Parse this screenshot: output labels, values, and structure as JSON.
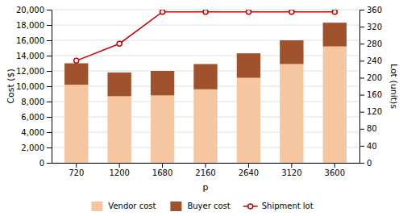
{
  "chart_data": {
    "type": "bar",
    "stacked": true,
    "categories": [
      "720",
      "1200",
      "1680",
      "2160",
      "2640",
      "3120",
      "3600"
    ],
    "x_label": "p",
    "y_label": "Cost ($)",
    "y2_label": "Lot (unit)s",
    "ylim": [
      0,
      20000
    ],
    "yticks": [
      0,
      {
        "value": 2000,
        "label": "2,000"
      },
      {
        "value": 4000,
        "label": "4,000"
      },
      {
        "value": 6000,
        "label": "6,000"
      },
      {
        "value": 8000,
        "label": "8,000"
      },
      {
        "value": 10000,
        "label": "10,000"
      },
      {
        "value": 12000,
        "label": "12,000"
      },
      {
        "value": 14000,
        "label": "14,000"
      },
      {
        "value": 16000,
        "label": "16,000"
      },
      {
        "value": 18000,
        "label": "18,000"
      },
      {
        "value": 20000,
        "label": "20,000"
      }
    ],
    "y2lim": [
      0,
      360
    ],
    "y2ticks": [
      0,
      40,
      80,
      120,
      160,
      200,
      240,
      280,
      320,
      360
    ],
    "grid": true,
    "legend": "bottom",
    "series": [
      {
        "name": "Vendor cost",
        "color": "#f5c6a0",
        "values": [
          10200,
          8700,
          8800,
          9600,
          11100,
          12900,
          15200
        ]
      },
      {
        "name": "Buyer cost",
        "color": "#a0522d",
        "values": [
          2800,
          3100,
          3200,
          3300,
          3200,
          3100,
          3100
        ]
      },
      {
        "name": "Shipment lot",
        "type": "line",
        "axis": "y2",
        "marker": "circle",
        "color": "#cc0000",
        "values": [
          240,
          280,
          355,
          355,
          355,
          355,
          355
        ]
      }
    ]
  }
}
